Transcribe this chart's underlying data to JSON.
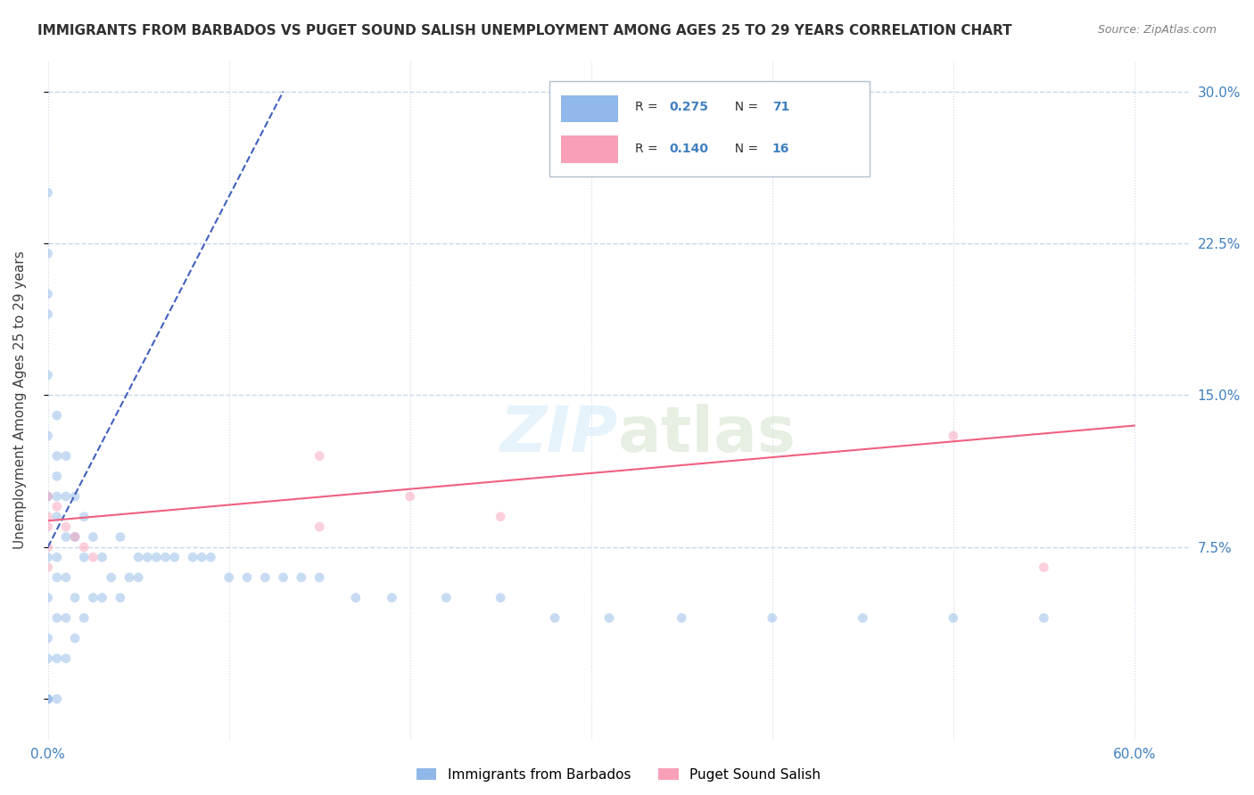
{
  "title": "IMMIGRANTS FROM BARBADOS VS PUGET SOUND SALISH UNEMPLOYMENT AMONG AGES 25 TO 29 YEARS CORRELATION CHART",
  "source": "Source: ZipAtlas.com",
  "xlabel_bottom": "",
  "ylabel": "Unemployment Among Ages 25 to 29 years",
  "x_ticks": [
    0.0,
    0.1,
    0.2,
    0.3,
    0.4,
    0.5,
    0.6
  ],
  "x_tick_labels": [
    "0.0%",
    "",
    "",
    "",
    "",
    "",
    "60.0%"
  ],
  "y_ticks": [
    0.0,
    0.075,
    0.15,
    0.225,
    0.3
  ],
  "y_tick_labels": [
    "",
    "7.5%",
    "15.0%",
    "22.5%",
    "30.0%"
  ],
  "xlim": [
    0.0,
    0.63
  ],
  "ylim": [
    -0.02,
    0.315
  ],
  "legend_entries": [
    {
      "label": "R = 0.275   N = 71",
      "color": "#a8c8f0"
    },
    {
      "label": "R = 0.140   N = 16",
      "color": "#f8b8c8"
    }
  ],
  "legend_r_values": [
    "0.275",
    "0.140"
  ],
  "legend_n_values": [
    "71",
    "16"
  ],
  "watermark": "ZIPatlas",
  "blue_scatter_x": [
    0.0,
    0.0,
    0.0,
    0.0,
    0.0,
    0.0,
    0.0,
    0.0,
    0.0,
    0.0,
    0.0,
    0.0,
    0.0,
    0.0,
    0.005,
    0.005,
    0.005,
    0.005,
    0.005,
    0.005,
    0.005,
    0.005,
    0.005,
    0.005,
    0.01,
    0.01,
    0.01,
    0.01,
    0.01,
    0.01,
    0.015,
    0.015,
    0.015,
    0.015,
    0.02,
    0.02,
    0.02,
    0.025,
    0.025,
    0.03,
    0.03,
    0.035,
    0.04,
    0.04,
    0.045,
    0.05,
    0.05,
    0.055,
    0.06,
    0.065,
    0.07,
    0.08,
    0.085,
    0.09,
    0.1,
    0.11,
    0.12,
    0.13,
    0.14,
    0.15,
    0.17,
    0.19,
    0.22,
    0.25,
    0.28,
    0.31,
    0.35,
    0.4,
    0.45,
    0.5,
    0.55
  ],
  "blue_scatter_y": [
    0.0,
    0.0,
    0.0,
    0.02,
    0.03,
    0.05,
    0.07,
    0.1,
    0.13,
    0.16,
    0.19,
    0.2,
    0.22,
    0.25,
    0.0,
    0.02,
    0.04,
    0.06,
    0.07,
    0.09,
    0.1,
    0.11,
    0.12,
    0.14,
    0.02,
    0.04,
    0.06,
    0.08,
    0.1,
    0.12,
    0.03,
    0.05,
    0.08,
    0.1,
    0.04,
    0.07,
    0.09,
    0.05,
    0.08,
    0.05,
    0.07,
    0.06,
    0.05,
    0.08,
    0.06,
    0.06,
    0.07,
    0.07,
    0.07,
    0.07,
    0.07,
    0.07,
    0.07,
    0.07,
    0.06,
    0.06,
    0.06,
    0.06,
    0.06,
    0.06,
    0.05,
    0.05,
    0.05,
    0.05,
    0.04,
    0.04,
    0.04,
    0.04,
    0.04,
    0.04,
    0.04
  ],
  "pink_scatter_x": [
    0.0,
    0.0,
    0.0,
    0.0,
    0.0,
    0.005,
    0.01,
    0.015,
    0.02,
    0.025,
    0.15,
    0.15,
    0.2,
    0.25,
    0.5,
    0.55
  ],
  "pink_scatter_y": [
    0.065,
    0.075,
    0.085,
    0.09,
    0.1,
    0.095,
    0.085,
    0.08,
    0.075,
    0.07,
    0.12,
    0.085,
    0.1,
    0.09,
    0.13,
    0.065
  ],
  "blue_line_x": [
    0.0,
    0.13
  ],
  "blue_line_y": [
    0.075,
    0.3
  ],
  "pink_line_x": [
    0.0,
    0.6
  ],
  "pink_line_y": [
    0.088,
    0.135
  ],
  "blue_dot_color": "#90b8e8",
  "pink_dot_color": "#f8a0b8",
  "blue_line_color": "#4060c0",
  "pink_line_color": "#f06080",
  "grid_color": "#c8d8e8",
  "bg_color": "#ffffff",
  "title_color": "#303030",
  "source_color": "#808080",
  "axis_label_color": "#404040",
  "tick_label_color_right": "#4080c0",
  "dot_size": 60,
  "dot_alpha": 0.5
}
